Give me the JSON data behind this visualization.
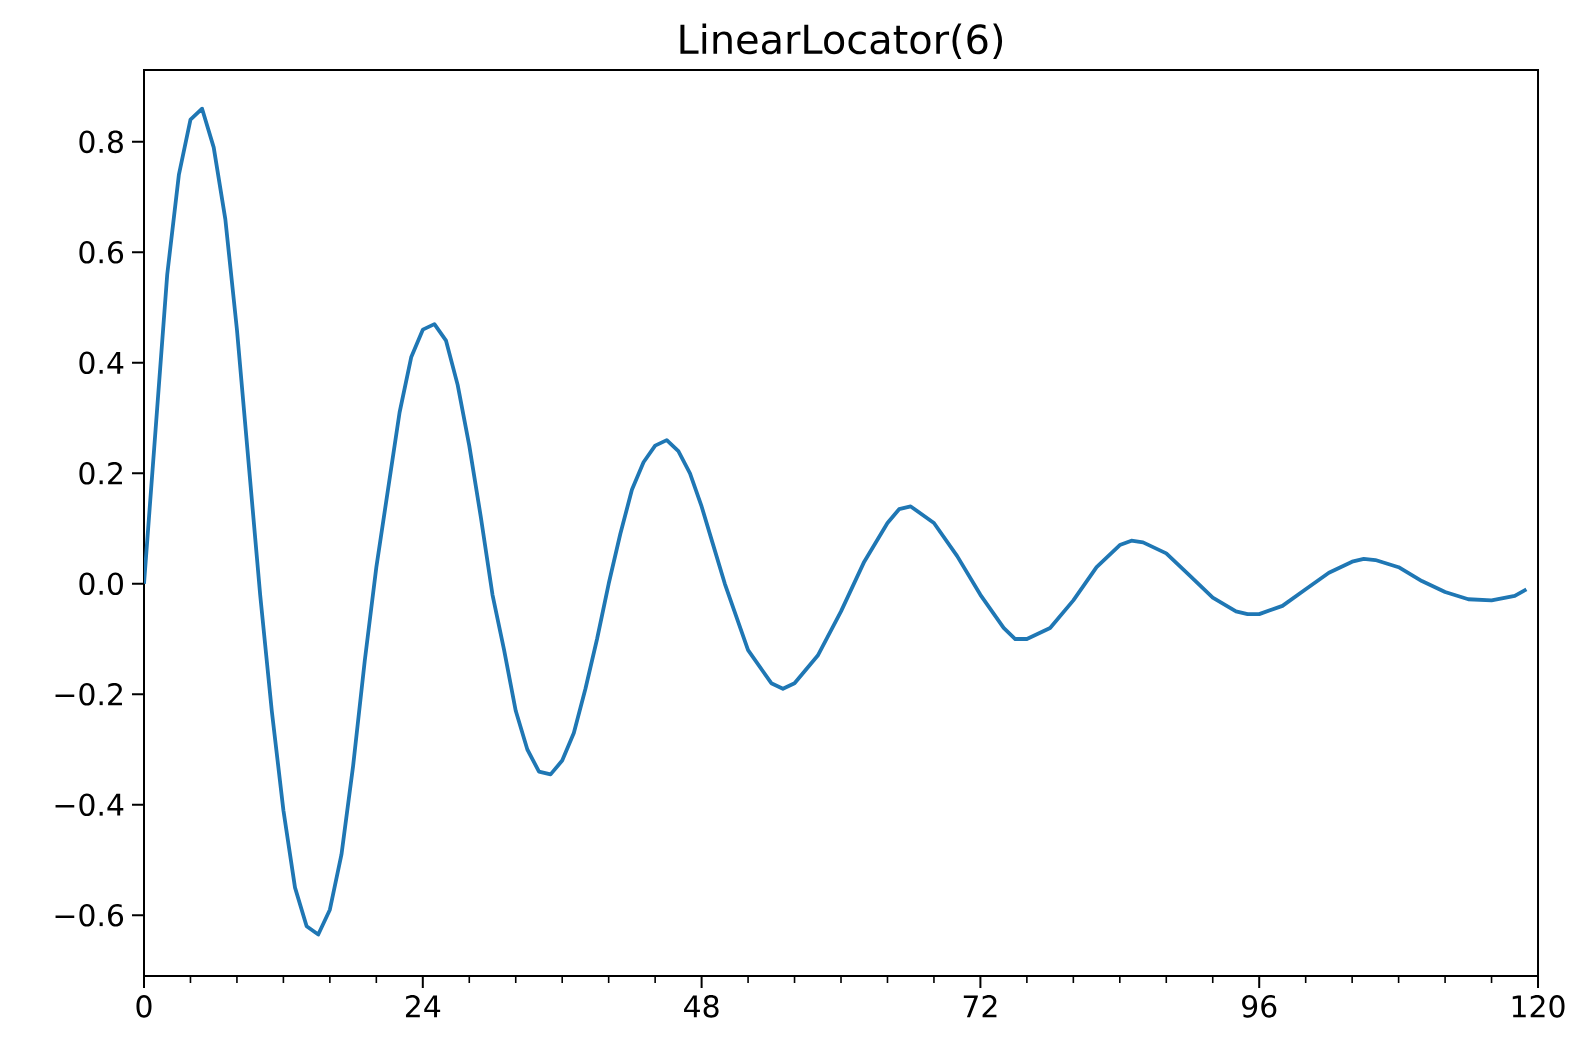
{
  "chart_data": {
    "type": "line",
    "title": "LinearLocator(6)",
    "x": [
      0,
      1,
      2,
      3,
      4,
      5,
      6,
      7,
      8,
      9,
      10,
      11,
      12,
      13,
      14,
      15,
      16,
      17,
      18,
      19,
      20,
      21,
      22,
      23,
      24,
      25,
      26,
      27,
      28,
      29,
      30,
      31,
      32,
      33,
      34,
      35,
      36,
      37,
      38,
      39,
      40,
      41,
      42,
      43,
      44,
      45,
      46,
      47,
      48,
      49,
      50,
      52,
      54,
      55,
      56,
      58,
      60,
      62,
      64,
      65,
      66,
      68,
      70,
      72,
      74,
      75,
      76,
      78,
      80,
      82,
      84,
      85,
      86,
      88,
      90,
      92,
      94,
      95,
      96,
      98,
      100,
      102,
      104,
      105,
      106,
      108,
      110,
      112,
      114,
      116,
      118,
      119
    ],
    "series": [
      {
        "color": "#1f77b4",
        "values": [
          0,
          0.28,
          0.56,
          0.74,
          0.84,
          0.86,
          0.79,
          0.66,
          0.46,
          0.22,
          -0.02,
          -0.23,
          -0.41,
          -0.55,
          -0.62,
          -0.635,
          -0.59,
          -0.49,
          -0.33,
          -0.14,
          0.03,
          0.17,
          0.31,
          0.41,
          0.46,
          0.47,
          0.44,
          0.36,
          0.25,
          0.12,
          -0.02,
          -0.12,
          -0.23,
          -0.3,
          -0.34,
          -0.345,
          -0.32,
          -0.27,
          -0.19,
          -0.1,
          0.0,
          0.09,
          0.17,
          0.22,
          0.25,
          0.26,
          0.24,
          0.2,
          0.14,
          0.07,
          0.0,
          -0.12,
          -0.18,
          -0.19,
          -0.18,
          -0.13,
          -0.05,
          0.04,
          0.11,
          0.135,
          0.14,
          0.11,
          0.05,
          -0.02,
          -0.08,
          -0.1,
          -0.1,
          -0.08,
          -0.03,
          0.03,
          0.07,
          0.078,
          0.075,
          0.055,
          0.015,
          -0.025,
          -0.05,
          -0.055,
          -0.055,
          -0.04,
          -0.01,
          0.02,
          0.04,
          0.045,
          0.043,
          0.03,
          0.005,
          -0.015,
          -0.028,
          -0.03,
          -0.022,
          -0.01
        ]
      }
    ],
    "xlim": [
      0,
      120
    ],
    "ylim": [
      -0.71,
      0.93
    ],
    "xticks": [
      0,
      {
        "value": 4,
        "label": null
      },
      {
        "value": 8,
        "label": null
      },
      {
        "value": 12,
        "label": null
      },
      {
        "value": 16,
        "label": null
      },
      {
        "value": 20,
        "label": null
      },
      24,
      {
        "value": 28,
        "label": null
      },
      {
        "value": 32,
        "label": null
      },
      {
        "value": 36,
        "label": null
      },
      {
        "value": 40,
        "label": null
      },
      {
        "value": 44,
        "label": null
      },
      48,
      {
        "value": 52,
        "label": null
      },
      {
        "value": 56,
        "label": null
      },
      {
        "value": 60,
        "label": null
      },
      {
        "value": 64,
        "label": null
      },
      {
        "value": 68,
        "label": null
      },
      72,
      {
        "value": 76,
        "label": null
      },
      {
        "value": 80,
        "label": null
      },
      {
        "value": 84,
        "label": null
      },
      {
        "value": 88,
        "label": null
      },
      {
        "value": 92,
        "label": null
      },
      96,
      {
        "value": 100,
        "label": null
      },
      {
        "value": 104,
        "label": null
      },
      {
        "value": 108,
        "label": null
      },
      {
        "value": 112,
        "label": null
      },
      {
        "value": 116,
        "label": null
      },
      120
    ],
    "yticks": [
      {
        "value": -0.6,
        "label": "−0.6"
      },
      {
        "value": -0.4,
        "label": "−0.4"
      },
      {
        "value": -0.2,
        "label": "−0.2"
      },
      {
        "value": 0.0,
        "label": "0.0"
      },
      {
        "value": 0.2,
        "label": "0.2"
      },
      {
        "value": 0.4,
        "label": "0.4"
      },
      {
        "value": 0.6,
        "label": "0.6"
      },
      {
        "value": 0.8,
        "label": "0.8"
      }
    ],
    "grid": false
  }
}
